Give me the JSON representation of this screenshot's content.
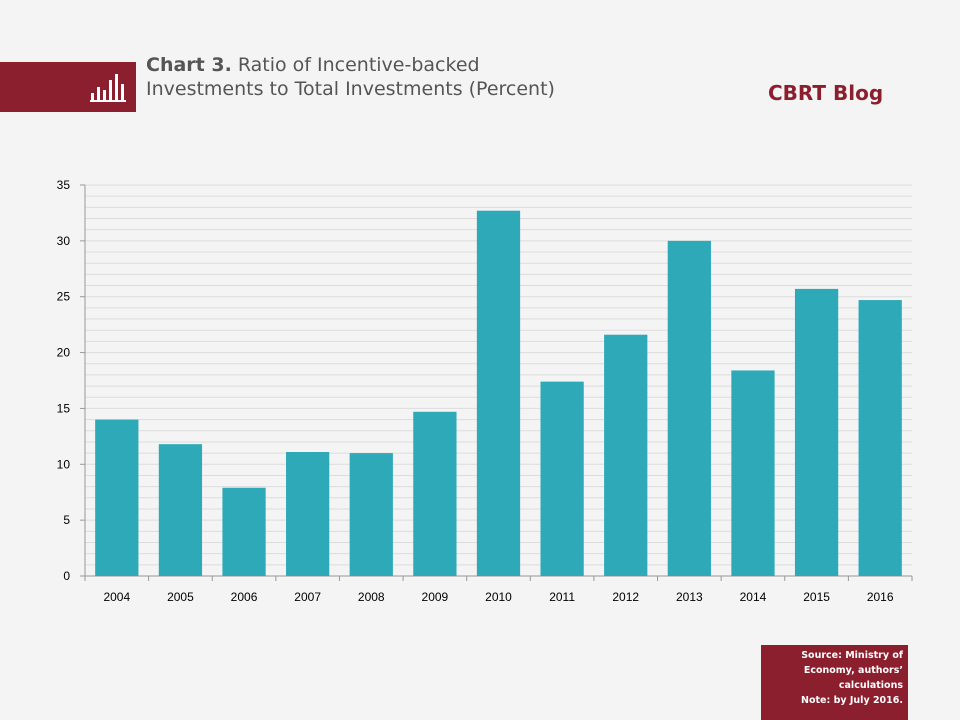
{
  "header": {
    "title_bold": "Chart 3.",
    "title_rest": " Ratio of Incentive-backed Investments to Total Investments (Percent)",
    "blog_name": "CBRT Blog",
    "icon": "bar-chart-icon",
    "band_color": "#8c1f2e"
  },
  "footer": {
    "source_line1": "Source: Ministry of",
    "source_line2": "Economy, authors’",
    "source_line3": "calculations",
    "note": "Note: by July 2016."
  },
  "chart_data": {
    "type": "bar",
    "categories": [
      "2004",
      "2005",
      "2006",
      "2007",
      "2008",
      "2009",
      "2010",
      "2011",
      "2012",
      "2013",
      "2014",
      "2015",
      "2016"
    ],
    "values": [
      14.0,
      11.8,
      7.9,
      11.1,
      11.0,
      14.7,
      32.7,
      17.4,
      21.6,
      30.0,
      18.4,
      25.7,
      24.7
    ],
    "ylim": [
      0,
      35
    ],
    "yticks": [
      0,
      5,
      10,
      15,
      20,
      25,
      30,
      35
    ],
    "grid": true,
    "bar_color": "#2ea9b8",
    "xlabel": "",
    "ylabel": ""
  }
}
